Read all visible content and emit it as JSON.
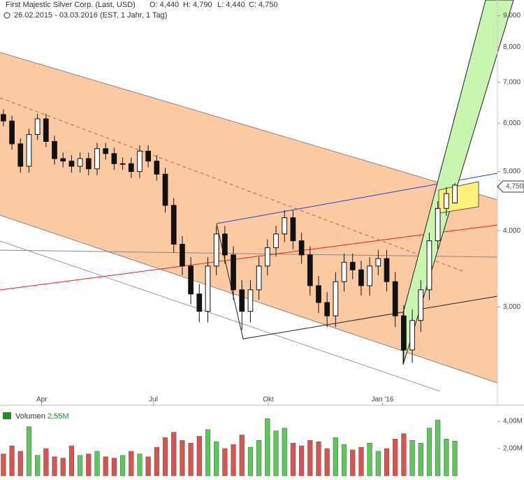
{
  "chart_data": {
    "type": "candlestick",
    "title": "First Majestic Silver Corp. (Last, USD)",
    "ohlc_labels": [
      "O: 4,440",
      "H: 4,790",
      "L: 4,440",
      "C: 4,750"
    ],
    "subtitle": "26.02.2015 - 03.03.2016 (EST, 1 Jahr, 1 Tag)",
    "last_label": "4,750",
    "xlim": [
      -0.4,
      58
    ],
    "xticks": [
      {
        "value": 4.5,
        "label": "Apr"
      },
      {
        "value": 17.6,
        "label": "Jul"
      },
      {
        "value": 31.1,
        "label": "Okt"
      },
      {
        "value": 44.5,
        "label": "Jan '16"
      }
    ],
    "ylim": [
      2.07,
      9.55
    ],
    "log_scale": true,
    "yticks": [
      {
        "value": 3,
        "label": "3,000"
      },
      {
        "value": 4,
        "label": "4,000"
      },
      {
        "value": 5,
        "label": "5,000"
      },
      {
        "value": 6,
        "label": "6,000"
      },
      {
        "value": 7,
        "label": "7,000"
      },
      {
        "value": 8,
        "label": "8,000"
      },
      {
        "value": 9,
        "label": "9,000"
      }
    ],
    "open": [
      6.2,
      6.05,
      5.55,
      5.1,
      5.75,
      6.1,
      5.6,
      5.25,
      5.2,
      5.1,
      5.25,
      5.05,
      5.45,
      5.35,
      5.15,
      5.15,
      5.0,
      5.4,
      5.2,
      4.95,
      4.4,
      3.8,
      3.5,
      3.15,
      2.95,
      3.5,
      3.95,
      3.65,
      3.2,
      2.95,
      3.2,
      3.5,
      3.75,
      3.95,
      4.2,
      3.85,
      3.65,
      3.25,
      3.05,
      2.9,
      3.3,
      3.55,
      3.45,
      3.25,
      3.5,
      3.6,
      3.3,
      2.9,
      2.55,
      2.85,
      3.2,
      3.85,
      4.35,
      4.44
    ],
    "high": [
      6.32,
      6.17,
      5.67,
      5.87,
      6.22,
      6.22,
      5.72,
      5.37,
      5.32,
      5.37,
      5.37,
      5.57,
      5.57,
      5.47,
      5.27,
      5.27,
      5.52,
      5.52,
      5.32,
      5.07,
      4.52,
      3.92,
      3.62,
      3.27,
      3.62,
      4.07,
      4.07,
      3.77,
      3.32,
      3.32,
      3.62,
      3.87,
      4.07,
      4.32,
      4.32,
      3.97,
      3.77,
      3.37,
      3.17,
      3.42,
      3.67,
      3.67,
      3.57,
      3.62,
      3.72,
      3.72,
      3.42,
      3.02,
      2.97,
      3.32,
      3.97,
      4.47,
      4.72,
      4.79
    ],
    "low": [
      5.93,
      5.43,
      4.98,
      4.98,
      5.63,
      5.48,
      5.13,
      5.08,
      4.98,
      4.98,
      4.93,
      4.93,
      5.23,
      5.03,
      5.03,
      4.88,
      4.88,
      5.08,
      4.83,
      4.28,
      3.68,
      3.38,
      3.03,
      2.83,
      2.83,
      3.38,
      3.53,
      3.08,
      2.75,
      2.83,
      3.08,
      3.38,
      3.63,
      3.83,
      3.73,
      3.53,
      3.13,
      2.93,
      2.78,
      2.78,
      3.18,
      3.33,
      3.13,
      3.13,
      3.38,
      3.18,
      2.78,
      2.43,
      2.43,
      2.73,
      3.08,
      3.73,
      4.23,
      4.44
    ],
    "close": [
      6.05,
      5.55,
      5.1,
      5.75,
      6.1,
      5.6,
      5.25,
      5.2,
      5.1,
      5.25,
      5.05,
      5.45,
      5.35,
      5.15,
      5.15,
      5.0,
      5.4,
      5.2,
      4.95,
      4.4,
      3.8,
      3.5,
      3.15,
      2.95,
      3.5,
      3.95,
      3.65,
      3.2,
      2.95,
      3.2,
      3.5,
      3.75,
      3.95,
      4.2,
      3.85,
      3.65,
      3.25,
      3.05,
      2.9,
      3.3,
      3.55,
      3.45,
      3.25,
      3.5,
      3.6,
      3.3,
      2.9,
      2.55,
      2.85,
      3.2,
      3.85,
      4.35,
      4.6,
      4.75
    ],
    "volume": {
      "title": "Volumen",
      "value_label": "2,55M",
      "up_color": "#5cc85c",
      "down_color": "#d9534f",
      "ylim": [
        0,
        4.77
      ],
      "yticks": [
        {
          "value": 2,
          "label": "2,00M"
        },
        {
          "value": 4,
          "label": "4,00M"
        }
      ],
      "values": [
        1.6,
        2.2,
        1.8,
        3.6,
        1.5,
        2.0,
        1.4,
        1.3,
        2.2,
        1.5,
        1.6,
        1.8,
        1.4,
        1.3,
        1.5,
        1.8,
        1.6,
        1.4,
        2.1,
        2.8,
        3.2,
        2.6,
        2.4,
        2.9,
        3.4,
        2.5,
        2.0,
        2.3,
        3.0,
        2.1,
        2.6,
        4.2,
        3.3,
        3.5,
        2.4,
        2.2,
        2.6,
        2.5,
        2.0,
        2.8,
        2.3,
        1.9,
        2.1,
        2.4,
        1.8,
        2.0,
        2.7,
        3.1,
        2.6,
        2.4,
        3.5,
        4.1,
        2.7,
        2.55
      ]
    }
  }
}
